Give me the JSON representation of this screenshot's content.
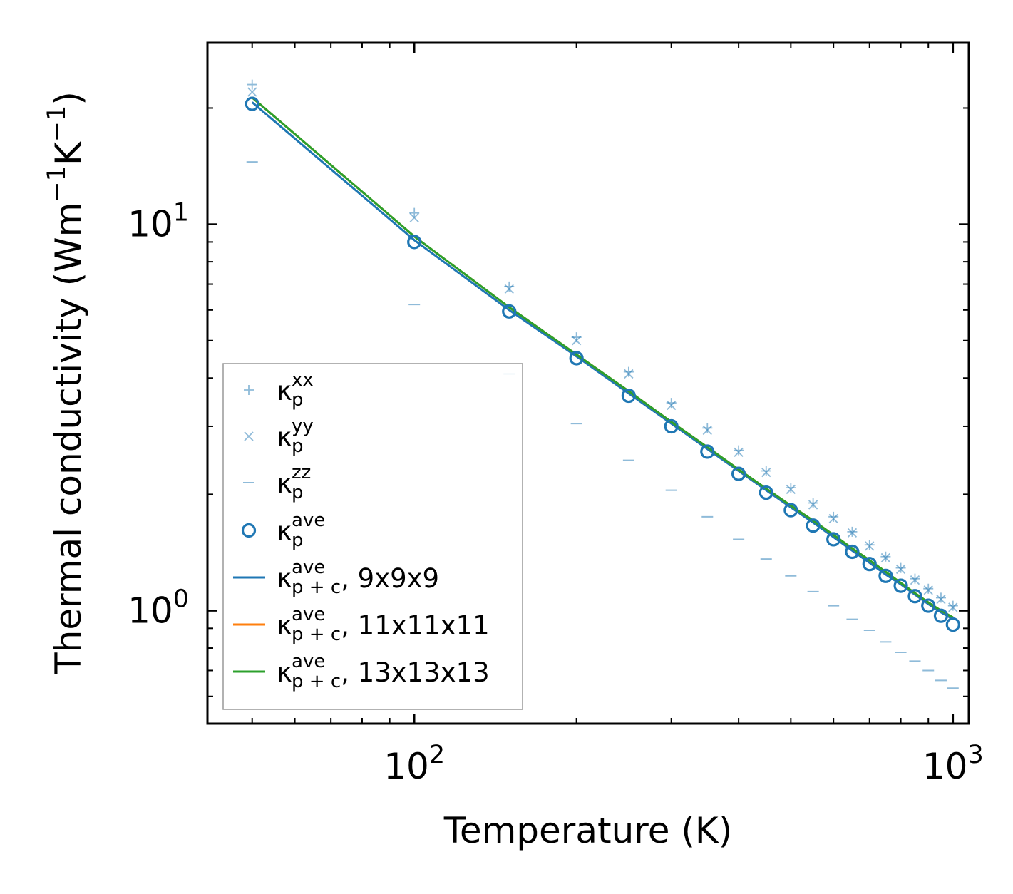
{
  "chart_data": {
    "type": "scatter",
    "x_scale": "log",
    "y_scale": "log",
    "xlabel": "Temperature (K)",
    "ylabel": "Thermal conductivity (Wm",
    "ylabel_parts": [
      "Thermal conductivity (Wm",
      "−1",
      "K",
      "−1",
      ")"
    ],
    "xlim": [
      41.3,
      1070
    ],
    "ylim": [
      0.51,
      29.5
    ],
    "x_ticks": [
      {
        "value": 100,
        "base": "10",
        "exp": "2"
      },
      {
        "value": 1000,
        "base": "10",
        "exp": "3"
      }
    ],
    "y_ticks": [
      {
        "value": 1,
        "base": "10",
        "exp": "0"
      },
      {
        "value": 10,
        "base": "10",
        "exp": "1"
      }
    ],
    "x": [
      50,
      100,
      150,
      200,
      250,
      300,
      350,
      400,
      450,
      500,
      550,
      600,
      650,
      700,
      750,
      800,
      850,
      900,
      950,
      1000
    ],
    "series": [
      {
        "name": "κ_p^xx",
        "marker": "plus",
        "color": "#1f77b4",
        "values": [
          23.0,
          10.7,
          6.9,
          5.1,
          4.15,
          3.45,
          2.97,
          2.6,
          2.3,
          2.08,
          1.9,
          1.75,
          1.6,
          1.48,
          1.38,
          1.29,
          1.21,
          1.14,
          1.08,
          1.03
        ]
      },
      {
        "name": "κ_p^yy",
        "marker": "x",
        "color": "#1f77b4",
        "values": [
          22.0,
          10.4,
          6.8,
          5.0,
          4.1,
          3.4,
          2.93,
          2.57,
          2.28,
          2.06,
          1.88,
          1.73,
          1.59,
          1.47,
          1.37,
          1.28,
          1.2,
          1.13,
          1.07,
          1.02
        ]
      },
      {
        "name": "κ_p^zz",
        "marker": "hline",
        "color": "#1f77b4",
        "values": [
          14.5,
          6.2,
          4.1,
          3.05,
          2.45,
          2.05,
          1.75,
          1.53,
          1.36,
          1.23,
          1.12,
          1.03,
          0.95,
          0.89,
          0.83,
          0.78,
          0.74,
          0.7,
          0.66,
          0.63
        ]
      },
      {
        "name": "κ_p^ave",
        "marker": "circle",
        "color": "#1f77b4",
        "values": [
          20.5,
          9.0,
          5.95,
          4.5,
          3.6,
          3.0,
          2.58,
          2.26,
          2.02,
          1.82,
          1.66,
          1.53,
          1.42,
          1.32,
          1.23,
          1.16,
          1.09,
          1.03,
          0.97,
          0.92
        ]
      },
      {
        "name": "κ_p+c^ave, 9x9x9",
        "marker": "line",
        "color": "#1f77b4",
        "values": [
          20.7,
          9.1,
          6.0,
          4.55,
          3.65,
          3.05,
          2.62,
          2.3,
          2.05,
          1.85,
          1.69,
          1.55,
          1.43,
          1.33,
          1.24,
          1.17,
          1.1,
          1.04,
          0.99,
          0.95
        ]
      },
      {
        "name": "κ_p+c^ave, 11x11x11",
        "marker": "line",
        "color": "#ff7f0e",
        "values": [
          21.3,
          9.3,
          6.1,
          4.6,
          3.7,
          3.08,
          2.65,
          2.32,
          2.07,
          1.87,
          1.71,
          1.57,
          1.45,
          1.35,
          1.26,
          1.18,
          1.11,
          1.05,
          1.0,
          0.96
        ]
      },
      {
        "name": "κ_p+c^ave, 13x13x13",
        "marker": "line",
        "color": "#2ca02c",
        "values": [
          21.3,
          9.3,
          6.1,
          4.6,
          3.7,
          3.08,
          2.65,
          2.32,
          2.07,
          1.87,
          1.71,
          1.57,
          1.45,
          1.35,
          1.26,
          1.18,
          1.11,
          1.05,
          1.0,
          0.96
        ]
      }
    ],
    "legend": {
      "placement": "lower-left",
      "entries": [
        {
          "marker": "plus",
          "color": "#1f77b4",
          "base": "κ",
          "sup": "xx",
          "sub": "p",
          "suffix": ""
        },
        {
          "marker": "x",
          "color": "#1f77b4",
          "base": "κ",
          "sup": "yy",
          "sub": "p",
          "suffix": ""
        },
        {
          "marker": "hline",
          "color": "#1f77b4",
          "base": "κ",
          "sup": "zz",
          "sub": "p",
          "suffix": ""
        },
        {
          "marker": "circle",
          "color": "#1f77b4",
          "base": "κ",
          "sup": "ave",
          "sub": "p",
          "suffix": ""
        },
        {
          "marker": "line",
          "color": "#1f77b4",
          "base": "κ",
          "sup": "ave",
          "sub": "p + c",
          "suffix": ", 9x9x9"
        },
        {
          "marker": "line",
          "color": "#ff7f0e",
          "base": "κ",
          "sup": "ave",
          "sub": "p + c",
          "suffix": ", 11x11x11"
        },
        {
          "marker": "line",
          "color": "#2ca02c",
          "base": "κ",
          "sup": "ave",
          "sub": "p + c",
          "suffix": ", 13x13x13"
        }
      ]
    },
    "colors": {
      "blue": "#1f77b4",
      "orange": "#ff7f0e",
      "green": "#2ca02c"
    }
  }
}
